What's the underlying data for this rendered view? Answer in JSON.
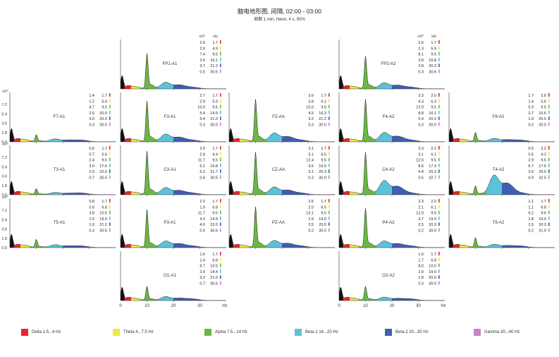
{
  "header": {
    "title": "脑电地形图, 间隔, 02:00 - 03:00",
    "subtitle": "周期 1 min, Hann, 4 s, 50%"
  },
  "chart_data": {
    "type": "area",
    "x_unit": "Hz",
    "y_unit": "uV²",
    "xlim": [
      0,
      40
    ],
    "ylim": [
      0,
      9
    ],
    "x_ticks": [
      "0",
      "10",
      "20",
      "30",
      "Hz"
    ],
    "y_ticks": [
      "7.2",
      "5.4",
      "3.6",
      "1.8",
      "0.0"
    ],
    "y_ticks_top": [
      "7.2",
      "5.4",
      "3.6",
      "1.8",
      "0.0"
    ],
    "bands": [
      {
        "name": "Delta",
        "range": "1.5...4 Hz",
        "color": "#e8262d"
      },
      {
        "name": "Theta",
        "range": "4...7.5 Hz",
        "color": "#f2e73a"
      },
      {
        "name": "Alpha",
        "range": "7.5...14 Hz",
        "color": "#6ab844"
      },
      {
        "name": "Beta-1",
        "range": "14...20 Hz",
        "color": "#5bc2d8"
      },
      {
        "name": "Beta-2",
        "range": "20...30 Hz",
        "color": "#3f5fb0"
      },
      {
        "name": "Gamma",
        "range": "30...40 Hz",
        "color": "#c586c8"
      }
    ],
    "channels": [
      {
        "label": "FP1-A1",
        "alpha_peak": 6.5,
        "beta_bump": 1.2,
        "uv_header": "uV²",
        "hz_header": "Hz",
        "table": [
          [
            "2.6",
            "1.7"
          ],
          [
            "2.0",
            "4.9"
          ],
          [
            "7.4",
            "9.5"
          ],
          [
            "3.6",
            "15.1"
          ],
          [
            "3.7",
            "21.2"
          ],
          [
            "0.5",
            "30.5"
          ]
        ]
      },
      {
        "label": "FP2-A2",
        "alpha_peak": 6.0,
        "beta_bump": 1.1,
        "uv_header": "uV²",
        "hz_header": "Hz",
        "table": [
          [
            "2.6",
            "1.7"
          ],
          [
            "2.3",
            "5.9"
          ],
          [
            "8.1",
            "9.5"
          ],
          [
            "3.8",
            "16.8"
          ],
          [
            "2.8",
            "20.3"
          ],
          [
            "0.3",
            "30.6"
          ]
        ]
      },
      {
        "label": "F7-A1",
        "alpha_peak": 1.3,
        "beta_bump": 0.5,
        "table": [
          [
            "1.4",
            "1.7"
          ],
          [
            "1.2",
            "5.4"
          ],
          [
            "4.7",
            "9.5"
          ],
          [
            "2.5",
            "20.0"
          ],
          [
            "3.0",
            "20.3"
          ],
          [
            "0.3",
            "30.5"
          ]
        ]
      },
      {
        "label": "F3-A1",
        "alpha_peak": 7.5,
        "beta_bump": 1.4,
        "table": [
          [
            "2.7",
            "1.7"
          ],
          [
            "2.9",
            "5.9"
          ],
          [
            "10.0",
            "9.5"
          ],
          [
            "5.4",
            "14.9"
          ],
          [
            "5.4",
            "21.0"
          ],
          [
            "0.3",
            "30.0"
          ]
        ]
      },
      {
        "label": "FZ-AA",
        "alpha_peak": 7.8,
        "beta_bump": 1.6,
        "table": [
          [
            "2.6",
            "1.7"
          ],
          [
            "3.8",
            "6.1"
          ],
          [
            "10.0",
            "9.5"
          ],
          [
            "4.5",
            "16.3"
          ],
          [
            "3.2",
            "21.2"
          ],
          [
            "0.3",
            "30.0"
          ]
        ]
      },
      {
        "label": "F4-A2",
        "alpha_peak": 7.8,
        "beta_bump": 1.7,
        "table": [
          [
            "3.3",
            "2.0"
          ],
          [
            "4.3",
            "6.3"
          ],
          [
            "12.9",
            "9.5"
          ],
          [
            "8.8",
            "16.1"
          ],
          [
            "5.4",
            "20.3"
          ],
          [
            "0.3",
            "30.0"
          ]
        ]
      },
      {
        "label": "F8-A2",
        "alpha_peak": 1.7,
        "beta_bump": 0.6,
        "table": [
          [
            "1.7",
            "2.0"
          ],
          [
            "1.4",
            "5.6"
          ],
          [
            "5.9",
            "9.5"
          ],
          [
            "2.7",
            "16.6"
          ],
          [
            "1.9",
            "20.5"
          ],
          [
            "0.2",
            "30.0"
          ]
        ]
      },
      {
        "label": "T3-A1",
        "alpha_peak": 1.1,
        "beta_bump": 0.4,
        "table": [
          [
            "0.6",
            "1.7"
          ],
          [
            "0.7",
            "5.6"
          ],
          [
            "2.4",
            "9.5"
          ],
          [
            "3.0",
            "17.6"
          ],
          [
            "2.9",
            "22.0"
          ],
          [
            "0.7",
            "30.5"
          ]
        ]
      },
      {
        "label": "C3-A1",
        "alpha_peak": 8.0,
        "beta_bump": 1.3,
        "table": [
          [
            "2.9",
            "1.7"
          ],
          [
            "2.8",
            "4.4"
          ],
          [
            "11.7",
            "9.5"
          ],
          [
            "6.1",
            "16.8"
          ],
          [
            "5.2",
            "21.7"
          ],
          [
            "0.6",
            "30.5"
          ]
        ]
      },
      {
        "label": "CZ-AA",
        "alpha_peak": 7.8,
        "beta_bump": 1.4,
        "table": [
          [
            "3.1",
            "1.7"
          ],
          [
            "3.1",
            "6.5"
          ],
          [
            "12.4",
            "9.5"
          ],
          [
            "3.5",
            "16.5"
          ],
          [
            "3.1",
            "20.3"
          ],
          [
            "0.3",
            "30.0"
          ]
        ]
      },
      {
        "label": "C4-A2",
        "alpha_peak": 7.8,
        "beta_bump": 2.6,
        "table": [
          [
            "3.3",
            "2.2"
          ],
          [
            "3.1",
            "6.1"
          ],
          [
            "12.6",
            "9.5"
          ],
          [
            "8.6",
            "17.3"
          ],
          [
            "4.8",
            "20.3"
          ],
          [
            "0.5",
            "32.7"
          ]
        ]
      },
      {
        "label": "T4-A2",
        "alpha_peak": 1.6,
        "beta_bump": 3.6,
        "table": [
          [
            "0.5",
            "2.2"
          ],
          [
            "0.5",
            "4.2"
          ],
          [
            "2.9",
            "9.5"
          ],
          [
            "6.7",
            "17.5"
          ],
          [
            "2.6",
            "20.0"
          ],
          [
            "0.9",
            "32.5"
          ]
        ]
      },
      {
        "label": "T5-A1",
        "alpha_peak": 1.5,
        "beta_bump": 0.5,
        "table": [
          [
            "0.8",
            "1.7"
          ],
          [
            "0.6",
            "6.8"
          ],
          [
            "3.8",
            "10.5"
          ],
          [
            "1.5",
            "19.0"
          ],
          [
            "1.6",
            "21.2"
          ],
          [
            "0.3",
            "30.5"
          ]
        ]
      },
      {
        "label": "P3-A1",
        "alpha_peak": 7.0,
        "beta_bump": 1.2,
        "table": [
          [
            "2.2",
            "1.7"
          ],
          [
            "1.9",
            "6.8"
          ],
          [
            "11.7",
            "9.5"
          ],
          [
            "4.3",
            "14.9"
          ],
          [
            "4.0",
            "22.0"
          ],
          [
            "0.5",
            "30.6"
          ]
        ]
      },
      {
        "label": "PZ-AA",
        "alpha_peak": 7.5,
        "beta_bump": 1.3,
        "table": [
          [
            "2.5",
            "1.7"
          ],
          [
            "2.0",
            "6.5"
          ],
          [
            "13.1",
            "9.5"
          ],
          [
            "2.9",
            "19.5"
          ],
          [
            "2.5",
            "20.5"
          ],
          [
            "0.2",
            "30.0"
          ]
        ]
      },
      {
        "label": "P4-A2",
        "alpha_peak": 7.2,
        "beta_bump": 1.2,
        "table": [
          [
            "2.3",
            "2.2"
          ],
          [
            "2.1",
            "6.1"
          ],
          [
            "12.0",
            "9.5"
          ],
          [
            "3.7",
            "19.0"
          ],
          [
            "2.5",
            "20.3"
          ],
          [
            "0.2",
            "30.0"
          ]
        ]
      },
      {
        "label": "T6-A2",
        "alpha_peak": 1.8,
        "beta_bump": 0.6,
        "table": [
          [
            "1.1",
            "1.7"
          ],
          [
            "1.1",
            "6.8"
          ],
          [
            "6.2",
            "9.6"
          ],
          [
            "1.8",
            "19.0"
          ],
          [
            "1.5",
            "20.3"
          ],
          [
            "0.2",
            "31.0"
          ]
        ]
      },
      {
        "label": "O1-A1",
        "alpha_peak": 2.6,
        "beta_bump": 0.7,
        "table": [
          [
            "1.6",
            "1.7"
          ],
          [
            "1.4",
            "6.8"
          ],
          [
            "9.7",
            "10.5"
          ],
          [
            "3.9",
            "14.4"
          ],
          [
            "3.2",
            "21.0"
          ],
          [
            "0.7",
            "30.6"
          ]
        ]
      },
      {
        "label": "O2-A2",
        "alpha_peak": 2.6,
        "beta_bump": 0.6,
        "table": [
          [
            "1.6",
            "1.7"
          ],
          [
            "1.7",
            "6.8"
          ],
          [
            "8.0",
            "10.5"
          ],
          [
            "2.0",
            "19.0"
          ],
          [
            "1.8",
            "20.0"
          ],
          [
            "0.3",
            "30.0"
          ]
        ]
      }
    ]
  }
}
